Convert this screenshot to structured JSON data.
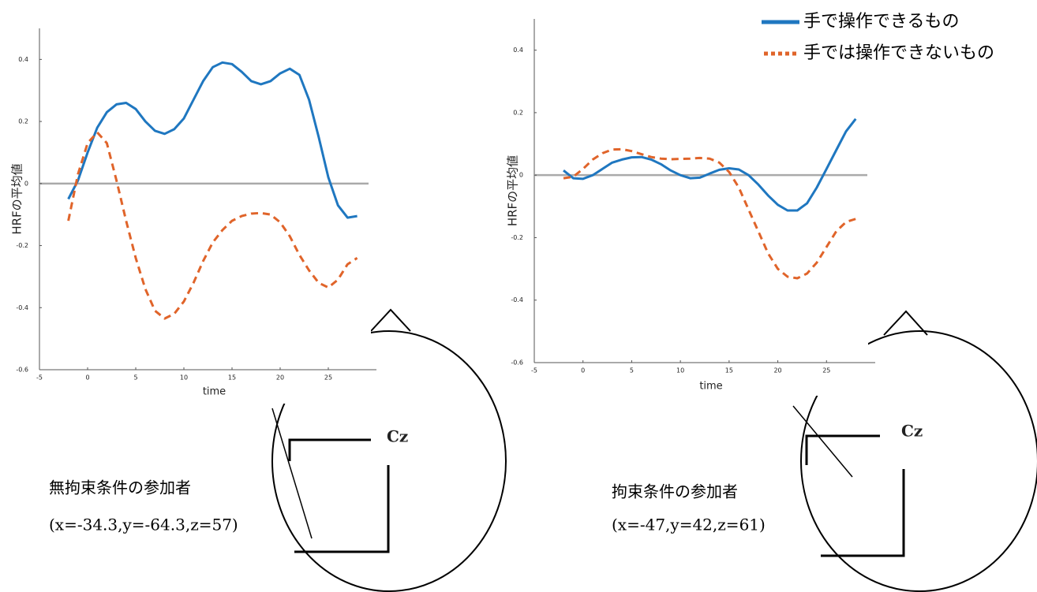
{
  "chart_data": [
    {
      "type": "line",
      "ylabel": "HRFの平均値",
      "xlabel": "time",
      "x": [
        -2,
        -1,
        0,
        1,
        2,
        3,
        4,
        5,
        6,
        7,
        8,
        9,
        10,
        11,
        12,
        13,
        14,
        15,
        16,
        17,
        18,
        19,
        20,
        21,
        22,
        23,
        24,
        25,
        26,
        27,
        28
      ],
      "series": [
        {
          "color": "#1f77c0",
          "style": "solid",
          "values": [
            -0.05,
            0.01,
            0.1,
            0.18,
            0.23,
            0.255,
            0.26,
            0.24,
            0.2,
            0.17,
            0.16,
            0.175,
            0.21,
            0.27,
            0.33,
            0.375,
            0.39,
            0.385,
            0.36,
            0.33,
            0.32,
            0.33,
            0.355,
            0.37,
            0.35,
            0.27,
            0.15,
            0.02,
            -0.07,
            -0.11,
            -0.105
          ]
        },
        {
          "color": "#e0642a",
          "style": "dashed",
          "values": [
            -0.12,
            0.03,
            0.13,
            0.165,
            0.13,
            0.01,
            -0.12,
            -0.24,
            -0.34,
            -0.41,
            -0.435,
            -0.42,
            -0.38,
            -0.32,
            -0.25,
            -0.19,
            -0.15,
            -0.12,
            -0.105,
            -0.097,
            -0.095,
            -0.1,
            -0.125,
            -0.17,
            -0.23,
            -0.28,
            -0.32,
            -0.335,
            -0.31,
            -0.26,
            -0.24
          ]
        }
      ],
      "xlim": [
        -5,
        30
      ],
      "xticks": [
        -5,
        0,
        5,
        10,
        15,
        20,
        25
      ],
      "ylim": [
        -0.6,
        0.5
      ],
      "yticks": [
        -0.6,
        -0.4,
        -0.2,
        0,
        0.2,
        0.4
      ]
    },
    {
      "type": "line",
      "ylabel": "HRFの平均値",
      "xlabel": "time",
      "x": [
        -2,
        -1,
        0,
        1,
        2,
        3,
        4,
        5,
        6,
        7,
        8,
        9,
        10,
        11,
        12,
        13,
        14,
        15,
        16,
        17,
        18,
        19,
        20,
        21,
        22,
        23,
        24,
        25,
        26,
        27,
        28
      ],
      "series": [
        {
          "name": "手で操作できるもの",
          "color": "#1f77c0",
          "style": "solid",
          "values": [
            0.015,
            -0.01,
            -0.012,
            0.0,
            0.02,
            0.04,
            0.05,
            0.057,
            0.058,
            0.05,
            0.035,
            0.015,
            0.0,
            -0.01,
            -0.008,
            0.005,
            0.017,
            0.022,
            0.018,
            0.0,
            -0.03,
            -0.065,
            -0.095,
            -0.113,
            -0.113,
            -0.09,
            -0.04,
            0.02,
            0.08,
            0.14,
            0.18
          ]
        },
        {
          "name": "手では操作できないもの",
          "color": "#e0642a",
          "style": "dashed",
          "values": [
            -0.01,
            -0.005,
            0.02,
            0.05,
            0.07,
            0.082,
            0.083,
            0.077,
            0.067,
            0.058,
            0.053,
            0.051,
            0.052,
            0.053,
            0.055,
            0.053,
            0.04,
            0.01,
            -0.04,
            -0.11,
            -0.18,
            -0.25,
            -0.3,
            -0.325,
            -0.33,
            -0.315,
            -0.28,
            -0.23,
            -0.18,
            -0.15,
            -0.14
          ]
        }
      ],
      "xlim": [
        -5,
        30
      ],
      "xticks": [
        -5,
        0,
        5,
        10,
        15,
        20,
        25
      ],
      "ylim": [
        -0.6,
        0.5
      ],
      "yticks": [
        -0.6,
        -0.4,
        -0.2,
        0,
        0.2,
        0.4
      ]
    }
  ],
  "annotations": [
    {
      "electrode": "Cz",
      "participant": "無拘束条件の参加者",
      "coords": "(x=-34.3,y=-64.3,z=57)"
    },
    {
      "electrode": "Cz",
      "participant": "拘束条件の参加者",
      "coords": "(x=-47,y=42,z=61)"
    }
  ]
}
